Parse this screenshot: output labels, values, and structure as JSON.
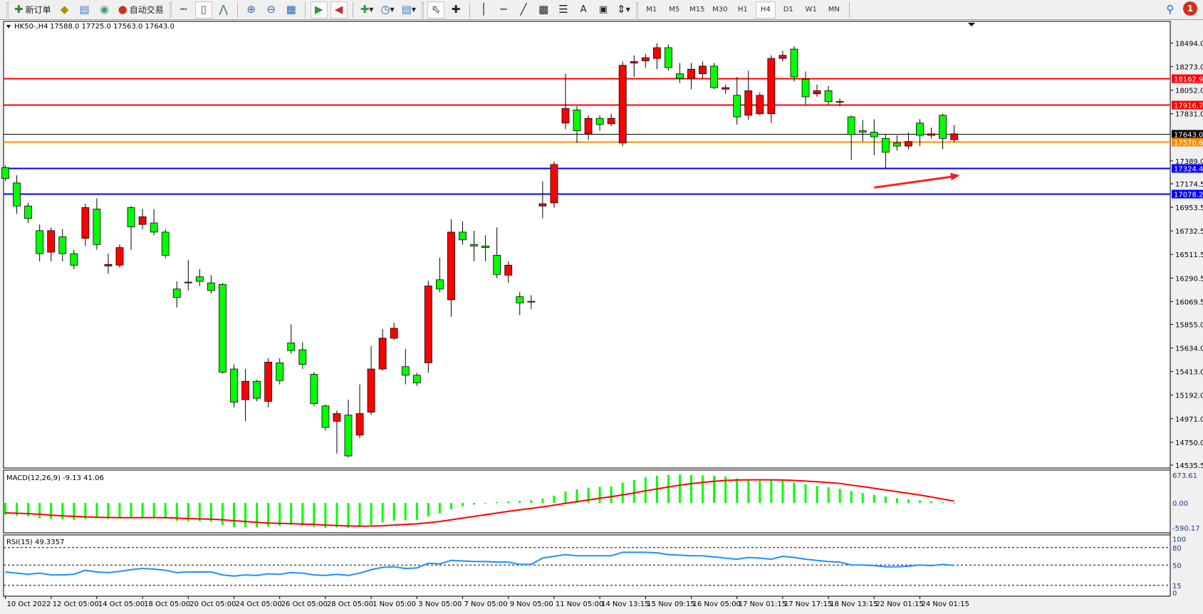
{
  "toolbar": {
    "new_order": "新订单",
    "auto_trading": "自动交易",
    "timeframes": [
      "M1",
      "M5",
      "M15",
      "M30",
      "H1",
      "H4",
      "D1",
      "W1",
      "MN"
    ],
    "active_timeframe": "H4",
    "notification_count": "1",
    "icons": [
      "new-order-icon",
      "market-watch-icon",
      "data-window-icon",
      "signals-icon",
      "auto-trading-icon",
      "bar-chart-icon",
      "candlestick-icon",
      "line-chart-icon",
      "zoom-in-icon",
      "zoom-out-icon",
      "tile-windows-icon",
      "autoscroll-icon",
      "chart-shift-icon",
      "indicators-icon",
      "periods-icon",
      "templates-icon",
      "cursor-icon",
      "crosshair-icon",
      "vertical-line-icon",
      "horizontal-line-icon",
      "trendline-icon",
      "fibo-channel-icon",
      "fibo-retracement-icon",
      "text-icon",
      "text-label-icon",
      "arrows-icon",
      "search-icon",
      "notifications-icon"
    ]
  },
  "chart_header": {
    "symbol": "HK50-,H4",
    "ohlc": "17588.0 17725.0 17563.0 17643.0"
  },
  "colors": {
    "bull": "#ff0000",
    "bear": "#00ff00",
    "background": "#ffffff",
    "macd_hist": "#00ff00",
    "signal": "#ff0000",
    "rsi": "#1e90ff",
    "resistance": "#ff0000",
    "support": "#0000ff",
    "level_orange": "#ff8c00",
    "bid": "#000000"
  },
  "chart_data": [
    {
      "type": "candlestick",
      "symbol": "HK50-",
      "timeframe": "H4",
      "ylim": [
        14535.5,
        18494.0
      ],
      "y_ticks": [
        "18494.0",
        "18273.0",
        "18052.0",
        "17831.0",
        "17389.0",
        "17174.5",
        "16953.5",
        "16732.5",
        "16511.5",
        "16290.5",
        "16069.5",
        "15855.0",
        "15634.0",
        "15413.0",
        "15192.0",
        "14971.0",
        "14750.0",
        "14535.5"
      ],
      "x_tick_labels": [
        "10 Oct 2022",
        "12 Oct 05:00",
        "14 Oct 05:00",
        "18 Oct 05:00",
        "20 Oct 05:00",
        "24 Oct 05:00",
        "26 Oct 05:00",
        "28 Oct 05:00",
        "1 Nov 05:00",
        "3 Nov 05:00",
        "7 Nov 05:00",
        "9 Nov 05:00",
        "11 Nov 05:00",
        "14 Nov 13:15",
        "15 Nov 09:15",
        "16 Nov 05:00",
        "17 Nov 01:15",
        "17 Nov 17:15",
        "18 Nov 13:15",
        "22 Nov 01:15",
        "24 Nov 01:15"
      ],
      "ohlc": [
        [
          17326,
          17348,
          17204,
          17225
        ],
        [
          17182,
          17254,
          16894,
          16966
        ],
        [
          16966,
          16995,
          16807,
          16850
        ],
        [
          16735,
          16793,
          16447,
          16519
        ],
        [
          16533,
          16764,
          16447,
          16735
        ],
        [
          16677,
          16749,
          16447,
          16519
        ],
        [
          16519,
          16555,
          16374,
          16411
        ],
        [
          16663,
          16987,
          16591,
          16951
        ],
        [
          16937,
          17038,
          16555,
          16605
        ],
        [
          16403,
          16519,
          16331,
          16418
        ],
        [
          16411,
          16605,
          16389,
          16576
        ],
        [
          16951,
          16966,
          16555,
          16771
        ],
        [
          16793,
          16937,
          16749,
          16865
        ],
        [
          16807,
          16937,
          16692,
          16721
        ],
        [
          16721,
          16749,
          16475,
          16504
        ],
        [
          16187,
          16259,
          16014,
          16108
        ],
        [
          16245,
          16461,
          16173,
          16252
        ],
        [
          16302,
          16374,
          16216,
          16259
        ],
        [
          16245,
          16317,
          16144,
          16173
        ],
        [
          16230,
          16245,
          15394,
          15408
        ],
        [
          15437,
          15480,
          15077,
          15127
        ],
        [
          15149,
          15437,
          14947,
          15322
        ],
        [
          15322,
          15336,
          15134,
          15163
        ],
        [
          15134,
          15538,
          15077,
          15502
        ],
        [
          15495,
          15538,
          15293,
          15329
        ],
        [
          15682,
          15855,
          15581,
          15610
        ],
        [
          15617,
          15689,
          15437,
          15480
        ],
        [
          15387,
          15408,
          15091,
          15113
        ],
        [
          15091,
          15105,
          14860,
          14889
        ],
        [
          14947,
          15048,
          14644,
          15019
        ],
        [
          15005,
          15149,
          14608,
          14622
        ],
        [
          14817,
          15293,
          14788,
          15019
        ],
        [
          15033,
          15653,
          15005,
          15437
        ],
        [
          15437,
          15812,
          15423,
          15726
        ],
        [
          15726,
          15870,
          15711,
          15819
        ],
        [
          15459,
          15625,
          15293,
          15379
        ],
        [
          15379,
          15401,
          15279,
          15307
        ],
        [
          15495,
          16266,
          15401,
          16216
        ],
        [
          16274,
          16483,
          16158,
          16187
        ],
        [
          16086,
          16843,
          15927,
          16721
        ],
        [
          16721,
          16821,
          16605,
          16648
        ],
        [
          16605,
          16735,
          16447,
          16591
        ],
        [
          16591,
          16692,
          16447,
          16576
        ],
        [
          16504,
          16764,
          16288,
          16324
        ],
        [
          16317,
          16447,
          16245,
          16411
        ],
        [
          16115,
          16158,
          15942,
          16057
        ],
        [
          16072,
          16129,
          16000,
          16064
        ],
        [
          16966,
          17196,
          16850,
          16987
        ],
        [
          16995,
          17384,
          16951,
          17355
        ],
        [
          17744,
          18206,
          17687,
          17881
        ],
        [
          17867,
          17903,
          17557,
          17672
        ],
        [
          17643,
          17817,
          17586,
          17788
        ],
        [
          17788,
          17817,
          17672,
          17730
        ],
        [
          17737,
          17831,
          17716,
          17788
        ],
        [
          17557,
          18321,
          17528,
          18285
        ],
        [
          18307,
          18379,
          18177,
          18321
        ],
        [
          18328,
          18393,
          18264,
          18357
        ],
        [
          18350,
          18494,
          18249,
          18451
        ],
        [
          18451,
          18480,
          18235,
          18264
        ],
        [
          18206,
          18307,
          18119,
          18163
        ],
        [
          18163,
          18307,
          18062,
          18249
        ],
        [
          18206,
          18321,
          18163,
          18278
        ],
        [
          18278,
          18307,
          18062,
          18076
        ],
        [
          18062,
          18105,
          18018,
          18076
        ],
        [
          18004,
          18177,
          17730,
          17802
        ],
        [
          17817,
          18235,
          17773,
          18047
        ],
        [
          17831,
          18033,
          17817,
          18004
        ],
        [
          17831,
          18379,
          17744,
          18350
        ],
        [
          18350,
          18422,
          18321,
          18379
        ],
        [
          18437,
          18465,
          18134,
          18177
        ],
        [
          18155,
          18228,
          17917,
          17990
        ],
        [
          18018,
          18105,
          17990,
          18047
        ],
        [
          18047,
          18091,
          17917,
          17946
        ],
        [
          17946,
          17975,
          17903,
          17939
        ],
        [
          17802,
          17817,
          17398,
          17636
        ],
        [
          17672,
          17773,
          17571,
          17658
        ],
        [
          17658,
          17780,
          17442,
          17615
        ],
        [
          17600,
          17636,
          17312,
          17470
        ],
        [
          17557,
          17629,
          17485,
          17528
        ],
        [
          17528,
          17658,
          17499,
          17571
        ],
        [
          17744,
          17780,
          17528,
          17629
        ],
        [
          17629,
          17701,
          17600,
          17643
        ],
        [
          17817,
          17831,
          17499,
          17600
        ],
        [
          17588,
          17725,
          17563,
          17643
        ]
      ],
      "horizontal_levels": [
        {
          "price": 18162.9,
          "label": "18162.9",
          "color": "#ff0000"
        },
        {
          "price": 17916.7,
          "label": "17916.7",
          "color": "#ff0000"
        },
        {
          "price": 17643.0,
          "label": "17643.0",
          "color": "#000000"
        },
        {
          "price": 17570.6,
          "label": "17570.6",
          "color": "#ff8c00"
        },
        {
          "price": 17324.4,
          "label": "17324.4",
          "color": "#0000ff"
        },
        {
          "price": 17078.2,
          "label": "17078.2",
          "color": "#0000ff"
        }
      ],
      "annotation": {
        "type": "arrow",
        "color": "#ff2020",
        "from": {
          "bar": 76,
          "price": 17139
        },
        "to": {
          "bar": 83.5,
          "price": 17254
        }
      }
    },
    {
      "type": "bar+line",
      "label": "MACD(12,26,9) -9.13 41.06",
      "ylim": [
        -590.17,
        673.61
      ],
      "y_ticks": [
        "673.61",
        "0.00",
        "-590.17"
      ],
      "macd": [
        -280,
        -300,
        -320,
        -360,
        -380,
        -390,
        -400,
        -380,
        -360,
        -380,
        -370,
        -350,
        -340,
        -340,
        -370,
        -420,
        -430,
        -430,
        -440,
        -520,
        -580,
        -580,
        -580,
        -560,
        -540,
        -520,
        -540,
        -570,
        -590,
        -580,
        -590,
        -570,
        -520,
        -460,
        -420,
        -410,
        -400,
        -320,
        -250,
        -150,
        -80,
        -40,
        -10,
        20,
        40,
        50,
        60,
        100,
        170,
        270,
        320,
        360,
        380,
        390,
        480,
        540,
        600,
        640,
        660,
        670,
        660,
        650,
        640,
        620,
        580,
        560,
        520,
        540,
        520,
        480,
        440,
        400,
        370,
        330,
        280,
        230,
        190,
        150,
        110,
        80,
        60,
        40,
        20,
        -9.13
      ],
      "signal": [
        -236,
        -245,
        -255,
        -270,
        -290,
        -305,
        -320,
        -330,
        -340,
        -345,
        -350,
        -350,
        -350,
        -348,
        -350,
        -360,
        -370,
        -378,
        -385,
        -400,
        -420,
        -440,
        -460,
        -475,
        -485,
        -490,
        -500,
        -510,
        -525,
        -535,
        -545,
        -550,
        -548,
        -540,
        -525,
        -510,
        -495,
        -470,
        -440,
        -400,
        -360,
        -320,
        -280,
        -240,
        -200,
        -165,
        -130,
        -95,
        -55,
        -10,
        30,
        70,
        110,
        145,
        190,
        235,
        285,
        330,
        375,
        420,
        455,
        485,
        510,
        530,
        540,
        545,
        545,
        545,
        540,
        530,
        515,
        500,
        480,
        460,
        420,
        385,
        345,
        305,
        265,
        225,
        185,
        140,
        90,
        41.06
      ]
    },
    {
      "type": "line",
      "label": "RSI(15) 49.3357",
      "ylim": [
        0,
        100
      ],
      "y_ticks": [
        "100",
        "80",
        "50",
        "15",
        "0"
      ],
      "levels": [
        80,
        50,
        15
      ],
      "values": [
        38,
        36,
        34,
        36,
        33,
        33,
        34,
        41,
        38,
        37,
        39,
        42,
        44,
        43,
        41,
        37,
        38,
        38,
        38,
        33,
        31,
        33,
        32,
        35,
        34,
        37,
        36,
        33,
        32,
        34,
        32,
        36,
        42,
        46,
        47,
        44,
        45,
        53,
        52,
        58,
        57,
        56,
        56,
        55,
        55,
        51,
        51,
        62,
        65,
        68,
        66,
        66,
        66,
        66,
        72,
        72,
        72,
        71,
        68,
        67,
        66,
        66,
        64,
        62,
        60,
        63,
        62,
        60,
        65,
        63,
        60,
        58,
        56,
        55,
        50,
        50,
        49,
        47,
        47,
        48,
        50,
        49,
        51,
        49.3357
      ]
    }
  ]
}
